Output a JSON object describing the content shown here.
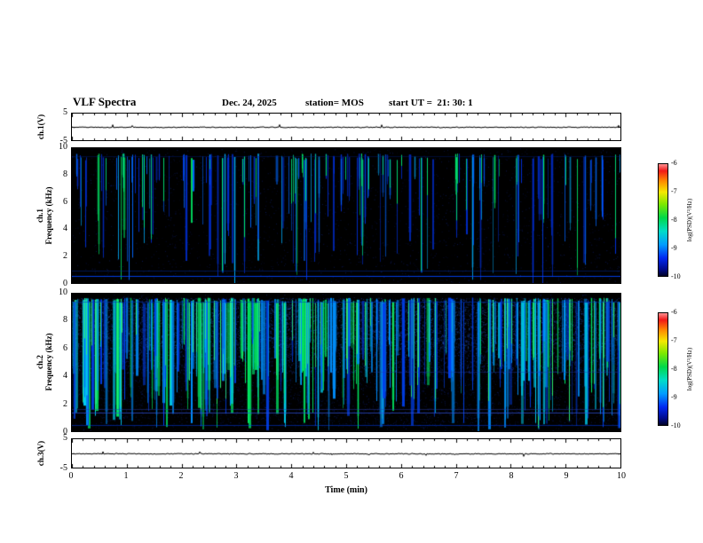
{
  "header": {
    "title": "VLF Spectra",
    "date": "Dec. 24, 2025",
    "station": "station= MOS",
    "start_ut": "start UT =  21: 30: 1"
  },
  "xaxis": {
    "label": "Time (min)",
    "tick_labels": [
      "0",
      "1",
      "2",
      "3",
      "4",
      "5",
      "6",
      "7",
      "8",
      "9",
      "10"
    ]
  },
  "panels": {
    "ch1_wave": {
      "ylabel": "ch.1(V)",
      "tick_labels": [
        "5",
        "-5"
      ]
    },
    "ch1_spec": {
      "channel": "ch.1",
      "axis_text": "Frequency (kHz)",
      "tick_labels": [
        "10",
        "8",
        "6",
        "4",
        "2",
        "0"
      ]
    },
    "ch2_spec": {
      "channel": "ch.2",
      "axis_text": "Frequency (kHz)",
      "tick_labels": [
        "10",
        "8",
        "6",
        "4",
        "2",
        "0"
      ]
    },
    "ch3_wave": {
      "ylabel": "ch.3(V)",
      "tick_labels": [
        "5",
        "-5"
      ]
    }
  },
  "colorbar": {
    "label": "log(PSD)(V²/Hz)",
    "tick_labels": [
      "-6",
      "-7",
      "-8",
      "-9",
      "-10"
    ],
    "gradient": [
      "#ff9090 0%",
      "#f01818 6%",
      "#ff8800 15%",
      "#f5e800 25%",
      "#7ce800 36%",
      "#00d84a 48%",
      "#00dcc8 60%",
      "#009cff 72%",
      "#0028f0 84%",
      "#000a8c 94%",
      "#000428 100%"
    ]
  },
  "chart_data": {
    "type": "heatmap",
    "figure": "VLF spectra multi-panel plot",
    "x": {
      "label": "Time (min)",
      "range": [
        0,
        10
      ],
      "ticks": [
        0,
        1,
        2,
        3,
        4,
        5,
        6,
        7,
        8,
        9,
        10
      ]
    },
    "panels": [
      {
        "type": "line",
        "name": "ch.1 voltage",
        "ylabel": "ch.1(V)",
        "ylim": [
          -5,
          5
        ],
        "values_summary": "flat baseline near 0 V with minor impulsive noise"
      },
      {
        "type": "heatmap",
        "name": "ch.1 spectrogram",
        "ylabel": "ch.1 Frequency (kHz)",
        "ylim": [
          0,
          10
        ],
        "color_scale": {
          "label": "log(PSD)(V²/Hz)",
          "range": [
            -10,
            -6
          ]
        },
        "pattern": "sparse vertical broadband impulses from ~9.5 kHz downward on black background, persistent narrow horizontal line near 0.5 kHz"
      },
      {
        "type": "heatmap",
        "name": "ch.2 spectrogram",
        "ylabel": "ch.2 Frequency (kHz)",
        "ylim": [
          0,
          10
        ],
        "color_scale": {
          "label": "log(PSD)(V²/Hz)",
          "range": [
            -10,
            -6
          ]
        },
        "pattern": "dense blue/green vertical broadband impulses covering most of the record, stronger diffuse blue power 4-9.5 kHz, faint horizontal lines near 1.3-1.5 kHz"
      },
      {
        "type": "line",
        "name": "ch.3 voltage",
        "ylabel": "ch.3(V)",
        "ylim": [
          -5,
          5
        ],
        "values_summary": "flat baseline near 0 V with minor impulsive noise"
      }
    ],
    "render": {
      "spec1": {
        "seed": 42,
        "noise": 2200,
        "streaks": 170,
        "topMin": 0.04,
        "topJit": 0.05,
        "depthMin": 0.12,
        "depthPow": 1.1,
        "depthSpan": 0.82,
        "wideProb": 0.15,
        "extraW": 1,
        "haloProb": 0.4,
        "coreProb": 0.22,
        "coreColor": "#00e868",
        "palette": [
          {
            "t": 0.45,
            "c": "#0030dd"
          },
          {
            "t": 0.75,
            "c": "#0066ff"
          },
          {
            "t": 0.9,
            "c": "#00b0ff"
          },
          {
            "t": 1,
            "c": "#00e060"
          }
        ],
        "bands": [],
        "hlines": [
          {
            "y": 0.945,
            "c": "#0044ff",
            "a": 0.9
          },
          {
            "y": 0.905,
            "c": "#0030aa",
            "a": 0.45
          },
          {
            "y": 0.06,
            "c": "#002299",
            "a": 0.35
          }
        ]
      },
      "spec2": {
        "seed": 1234,
        "noise": 2000,
        "streaks": 300,
        "topMin": 0.03,
        "topJit": 0.04,
        "depthMin": 0.3,
        "depthPow": 0.9,
        "depthSpan": 0.65,
        "wideProb": 0.45,
        "extraW": 2,
        "haloProb": 0.55,
        "coreProb": 0.35,
        "coreColor": "#30f070",
        "palette": [
          {
            "t": 0.3,
            "c": "#0040ee"
          },
          {
            "t": 0.55,
            "c": "#0090ff"
          },
          {
            "t": 0.78,
            "c": "#00ccee"
          },
          {
            "t": 1,
            "c": "#00e862"
          }
        ],
        "bands": [
          {
            "count": 9000,
            "y0": 0.03,
            "y1": 0.58,
            "rgb": "40,80,230",
            "alpha": 0.45
          },
          {
            "count": 3500,
            "y0": 0.03,
            "y1": 0.4,
            "rgb": "60,140,255",
            "alpha": 0.4
          },
          {
            "count": 2500,
            "y0": 0.58,
            "y1": 0.97,
            "rgb": "20,50,180",
            "alpha": 0.3
          }
        ],
        "hlines": [
          {
            "y": 0.865,
            "c": "#3050dd",
            "a": 0.7
          },
          {
            "y": 0.84,
            "c": "#2a3fae",
            "a": 0.45
          },
          {
            "y": 0.955,
            "c": "#0040ff",
            "a": 0.5
          },
          {
            "y": 0.06,
            "c": "#0030bb",
            "a": 0.5
          },
          {
            "y": 0.57,
            "x0": 0.55,
            "x1": 1,
            "c": "#2038aa",
            "a": 0.4
          }
        ]
      },
      "wave1_seed": 7,
      "wave3_seed": 21
    }
  }
}
